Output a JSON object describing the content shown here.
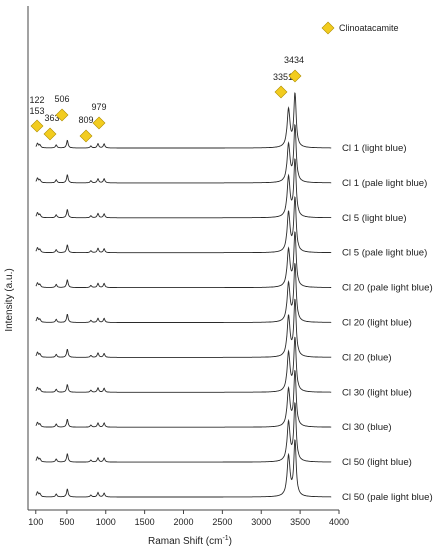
{
  "chart_data": {
    "type": "line",
    "title": "",
    "xlabel": "Raman Shift (cm",
    "xlabel_sup": "-1",
    "xlabel_end": ")",
    "ylabel": "Intensity (a.u.)",
    "xlim": [
      0,
      4000
    ],
    "xticks": [
      100,
      500,
      1000,
      1500,
      2000,
      2500,
      3000,
      3500,
      4000
    ],
    "xtick_labels": [
      "100",
      "500",
      "1000",
      "1500",
      "2000",
      "2500",
      "3000",
      "3500",
      "4000"
    ],
    "grid": false,
    "legend": {
      "label": "Clinoatacamite",
      "placement": "top-right",
      "marker": "diamond",
      "color": "#f2cc1f"
    },
    "annotations": [
      {
        "x": 122,
        "label": "122",
        "marked": true
      },
      {
        "x": 153,
        "label": "153",
        "marked": false
      },
      {
        "x": 363,
        "label": "363",
        "marked": true
      },
      {
        "x": 506,
        "label": "506",
        "marked": true
      },
      {
        "x": 809,
        "label": "809",
        "marked": true
      },
      {
        "x": 979,
        "label": "979",
        "marked": true
      },
      {
        "x": 3351,
        "label": "3351",
        "marked": true
      },
      {
        "x": 3434,
        "label": "3434",
        "marked": true
      }
    ],
    "peaks": [
      {
        "x": 122,
        "height": 0.18
      },
      {
        "x": 153,
        "height": 0.12
      },
      {
        "x": 363,
        "height": 0.12
      },
      {
        "x": 506,
        "height": 0.32
      },
      {
        "x": 809,
        "height": 0.08
      },
      {
        "x": 900,
        "height": 0.17
      },
      {
        "x": 979,
        "height": 0.16
      },
      {
        "x": 3351,
        "height": 1.55
      },
      {
        "x": 3434,
        "height": 2.2
      }
    ],
    "series": [
      {
        "name": "Cl 1 (light blue)"
      },
      {
        "name": "Cl 1 (pale light blue)"
      },
      {
        "name": "Cl 5 (light blue)"
      },
      {
        "name": "Cl 5 (pale light blue)"
      },
      {
        "name": "Cl 20 (pale light blue)"
      },
      {
        "name": "Cl 20 (light blue)"
      },
      {
        "name": "Cl 20 (blue)"
      },
      {
        "name": "Cl 30 (light blue)"
      },
      {
        "name": "Cl 30 (blue)"
      },
      {
        "name": "Cl 50 (light blue)"
      },
      {
        "name": "Cl 50 (pale light blue)"
      }
    ]
  }
}
